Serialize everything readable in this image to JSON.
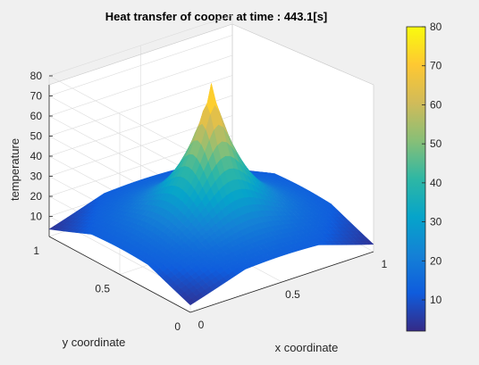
{
  "chart_data": {
    "type": "surface",
    "title": "Heat transfer of cooper at time : 443.1[s]",
    "xlabel": "x coordinate",
    "ylabel": "y coordinate",
    "zlabel": "temperature",
    "xlim": [
      0,
      1
    ],
    "ylim": [
      0,
      1
    ],
    "zlim": [
      0,
      80
    ],
    "x_ticks": [
      "0",
      "0.5",
      "1"
    ],
    "y_ticks": [
      "0",
      "0.5",
      "1"
    ],
    "z_ticks": [
      "10",
      "20",
      "30",
      "40",
      "50",
      "60",
      "70",
      "80"
    ],
    "colorbar": {
      "colormap": "parula",
      "range": [
        2,
        80
      ],
      "ticks": [
        "10",
        "20",
        "30",
        "40",
        "50",
        "60",
        "70",
        "80"
      ]
    },
    "surface": {
      "description": "temperature peak at center",
      "center": [
        0.5,
        0.5
      ],
      "peak_value": 80,
      "base_value": 10,
      "corner_value": 2
    },
    "grid": true
  },
  "colors": {
    "background": "#f0f0f0",
    "axes_face": "#ffffff",
    "grid": "#dcdcdc",
    "axis_line": "#262626",
    "parula": [
      "#352a87",
      "#0f5cdd",
      "#1481d6",
      "#06a4ca",
      "#2eb7a4",
      "#87bf77",
      "#d1bb59",
      "#fec832",
      "#f9fb0e"
    ]
  }
}
